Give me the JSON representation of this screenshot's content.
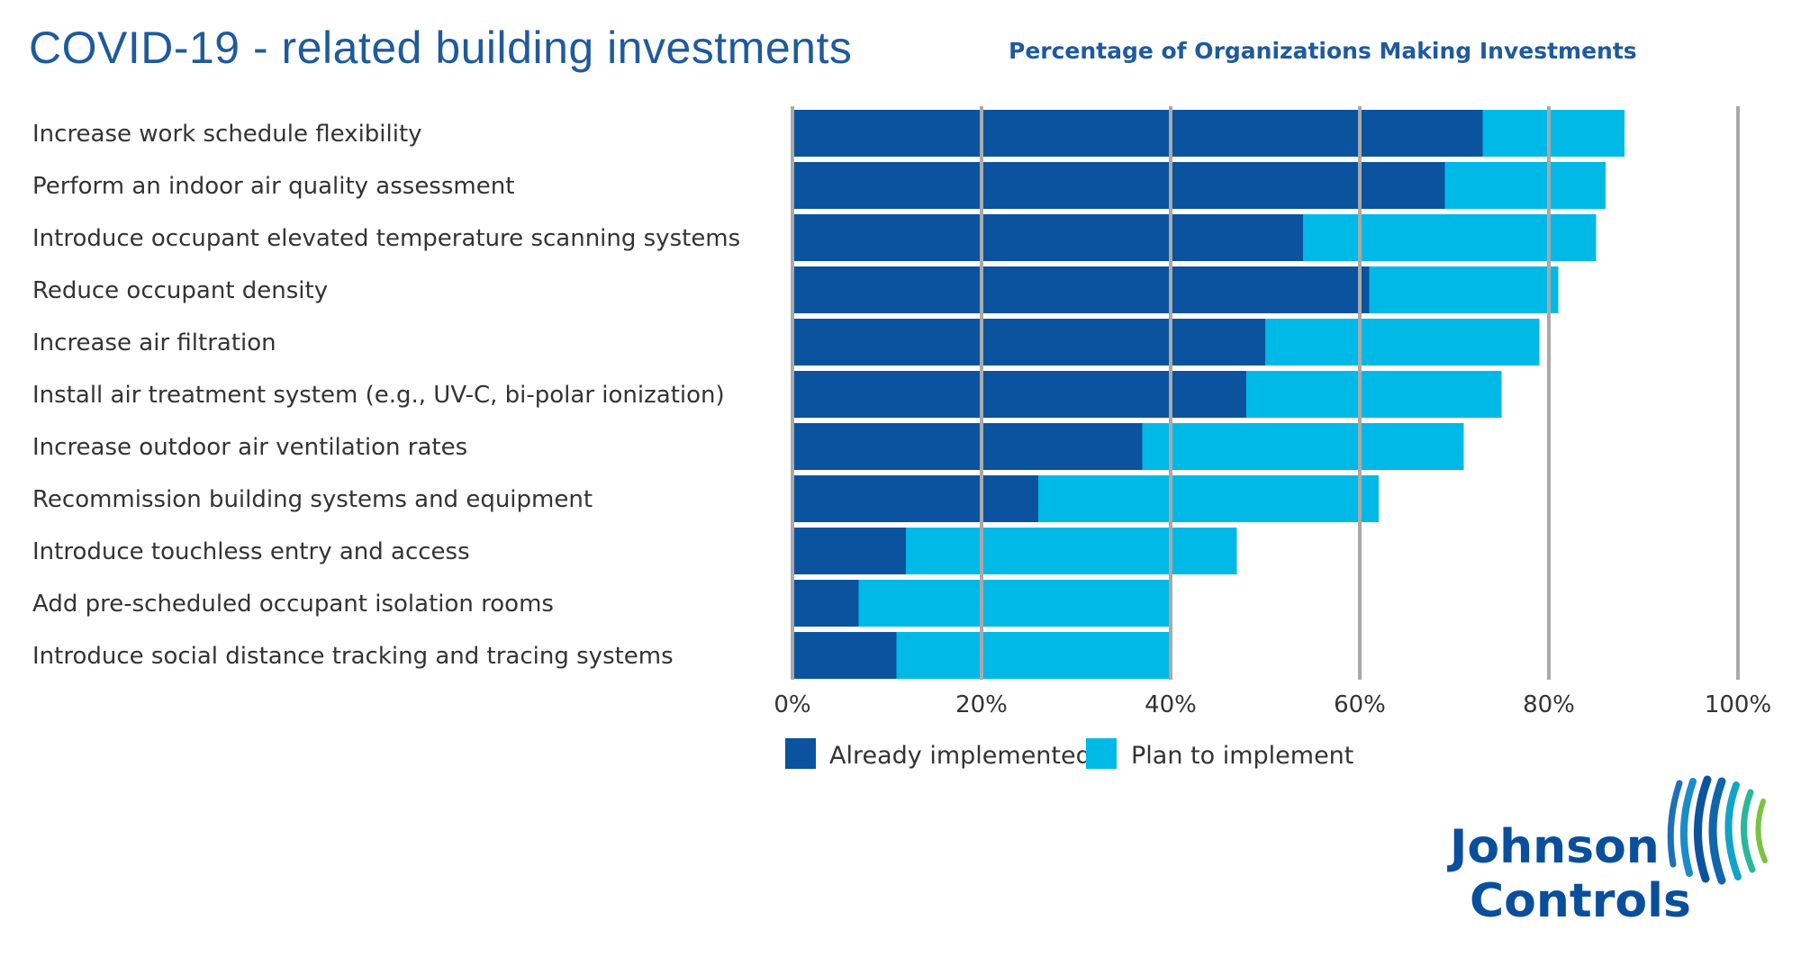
{
  "title": "COVID-19 - related building investments",
  "subtitle": "Percentage of Organizations Making Investments",
  "brand": {
    "line1": "Johnson",
    "line2": "Controls"
  },
  "colors": {
    "title": "#1f5a9d",
    "already": "#0b539e",
    "plan": "#00b9e6",
    "grid": "#a9a9a9",
    "brand_text": "#0a4f9b"
  },
  "chart_data": {
    "type": "bar",
    "orientation": "horizontal",
    "stacked": true,
    "title": "Percentage of Organizations Making Investments",
    "xlabel": "",
    "ylabel": "",
    "xlim": [
      0,
      100
    ],
    "x_ticks": [
      "0%",
      "20%",
      "40%",
      "60%",
      "80%",
      "100%"
    ],
    "grid": true,
    "legend_position": "bottom-left",
    "categories": [
      "Increase work schedule flexibility",
      "Perform an indoor air quality assessment",
      "Introduce occupant elevated temperature scanning systems",
      "Reduce occupant density",
      "Increase air filtration",
      "Install air treatment system (e.g., UV-C, bi-polar ionization)",
      "Increase outdoor air ventilation rates",
      "Recommission building systems and equipment",
      "Introduce touchless entry and access",
      "Add pre-scheduled occupant isolation rooms",
      "Introduce social distance tracking and tracing systems"
    ],
    "series": [
      {
        "name": "Already implemented",
        "values": [
          73,
          69,
          54,
          61,
          50,
          48,
          37,
          26,
          12,
          7,
          11
        ]
      },
      {
        "name": "Plan to implement",
        "values": [
          15,
          17,
          31,
          20,
          29,
          27,
          34,
          36,
          35,
          33,
          29
        ]
      }
    ]
  }
}
